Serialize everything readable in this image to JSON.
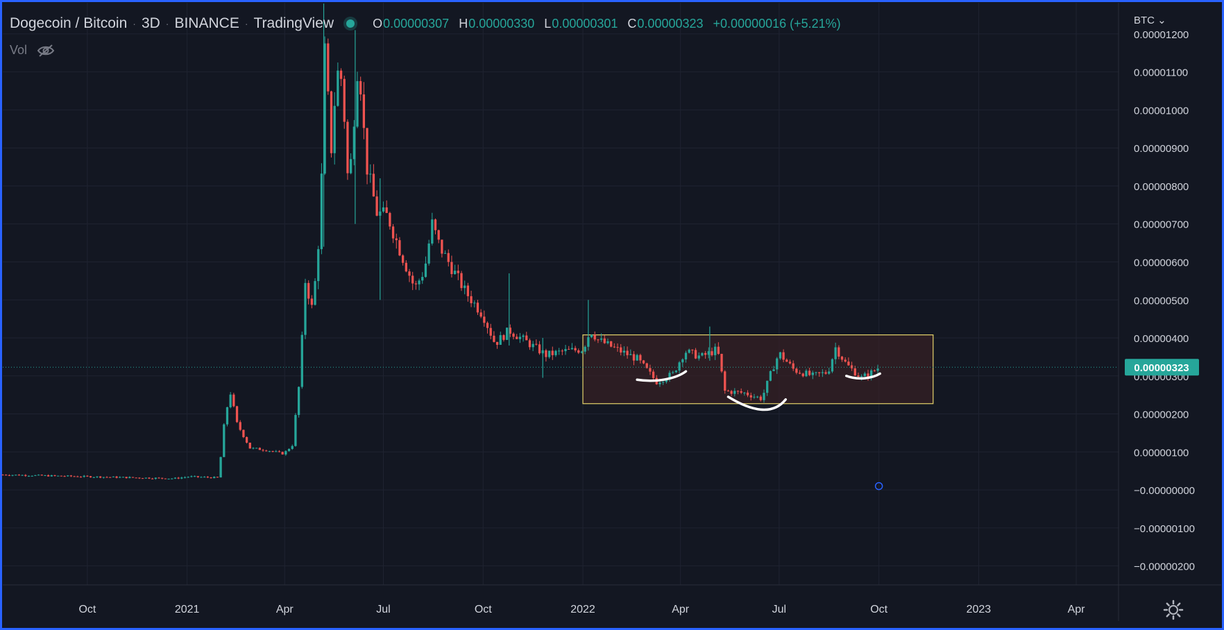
{
  "header": {
    "symbol": "Dogecoin / Bitcoin",
    "interval": "3D",
    "exchange": "BINANCE",
    "source": "TradingView",
    "ohlc": {
      "o_label": "O",
      "o": "0.00000307",
      "h_label": "H",
      "h": "0.00000330",
      "l_label": "L",
      "l": "0.00000301",
      "c_label": "C",
      "c": "0.00000323",
      "change": "+0.00000016 (+5.21%)"
    },
    "volume_label": "Vol"
  },
  "price_scale": {
    "currency": "BTC",
    "last_price_label": "0.00000323"
  },
  "colors": {
    "background": "#131722",
    "grid": "#1f2331",
    "up": "#26a69a",
    "down": "#ef5350",
    "frame": "#2962ff",
    "box_border": "#e6d46b",
    "box_fill": "#3a2025",
    "last_price_tag": "#26a69a"
  },
  "chart_data": {
    "type": "candlestick",
    "title": "",
    "y_axis": {
      "ticks": [
        "0.00001200",
        "0.00001100",
        "0.00001000",
        "0.00000900",
        "0.00000800",
        "0.00000700",
        "0.00000600",
        "0.00000500",
        "0.00000400",
        "0.00000300",
        "0.00000200",
        "0.00000100",
        "−0.00000000",
        "−0.00000100",
        "−0.00000200"
      ],
      "tick_values": [
        1200,
        1100,
        1000,
        900,
        800,
        700,
        600,
        500,
        400,
        300,
        200,
        100,
        0,
        -100,
        -200
      ],
      "unit_note": "values in 1e-8 BTC",
      "range": [
        -235,
        1280
      ]
    },
    "x_axis": {
      "tick_labels": [
        "Oct",
        "2021",
        "Apr",
        "Jul",
        "Oct",
        "2022",
        "Apr",
        "Jul",
        "Oct",
        "2023",
        "Apr"
      ],
      "tick_dates": [
        "2020-10-01",
        "2021-01-01",
        "2021-04-01",
        "2021-07-01",
        "2021-10-01",
        "2022-01-01",
        "2022-04-01",
        "2022-07-01",
        "2022-10-01",
        "2023-01-01",
        "2023-04-01"
      ],
      "range": [
        "2020-07-15",
        "2023-05-10"
      ]
    },
    "price_path": [
      [
        "2020-07-15",
        40
      ],
      [
        "2020-10-01",
        35
      ],
      [
        "2020-12-20",
        30
      ],
      [
        "2021-01-03",
        35
      ],
      [
        "2021-01-30",
        32
      ],
      [
        "2021-02-05",
        195
      ],
      [
        "2021-02-10",
        255
      ],
      [
        "2021-02-16",
        175
      ],
      [
        "2021-02-28",
        110
      ],
      [
        "2021-03-15",
        105
      ],
      [
        "2021-03-31",
        95
      ],
      [
        "2021-04-08",
        118
      ],
      [
        "2021-04-15",
        295
      ],
      [
        "2021-04-20",
        550
      ],
      [
        "2021-04-26",
        480
      ],
      [
        "2021-05-01",
        590
      ],
      [
        "2021-05-05",
        820
      ],
      [
        "2021-05-08",
        1150
      ],
      [
        "2021-05-14",
        900
      ],
      [
        "2021-05-19",
        1100
      ],
      [
        "2021-05-24",
        1080
      ],
      [
        "2021-05-30",
        780
      ],
      [
        "2021-06-08",
        1150
      ],
      [
        "2021-06-15",
        860
      ],
      [
        "2021-06-25",
        730
      ],
      [
        "2021-07-05",
        720
      ],
      [
        "2021-07-15",
        640
      ],
      [
        "2021-07-30",
        530
      ],
      [
        "2021-08-08",
        580
      ],
      [
        "2021-08-15",
        700
      ],
      [
        "2021-08-22",
        640
      ],
      [
        "2021-09-01",
        590
      ],
      [
        "2021-09-15",
        520
      ],
      [
        "2021-10-01",
        460
      ],
      [
        "2021-10-12",
        385
      ],
      [
        "2021-10-25",
        420
      ],
      [
        "2021-11-10",
        390
      ],
      [
        "2021-11-28",
        355
      ],
      [
        "2021-12-15",
        365
      ],
      [
        "2022-01-01",
        370
      ],
      [
        "2022-01-08",
        420
      ],
      [
        "2022-01-15",
        395
      ],
      [
        "2022-02-01",
        370
      ],
      [
        "2022-02-20",
        345
      ],
      [
        "2022-03-10",
        285
      ],
      [
        "2022-03-25",
        305
      ],
      [
        "2022-04-05",
        365
      ],
      [
        "2022-04-20",
        350
      ],
      [
        "2022-05-05",
        370
      ],
      [
        "2022-05-12",
        260
      ],
      [
        "2022-05-30",
        255
      ],
      [
        "2022-06-15",
        240
      ],
      [
        "2022-06-25",
        320
      ],
      [
        "2022-07-01",
        360
      ],
      [
        "2022-07-15",
        315
      ],
      [
        "2022-08-01",
        300
      ],
      [
        "2022-08-15",
        310
      ],
      [
        "2022-08-22",
        375
      ],
      [
        "2022-09-01",
        330
      ],
      [
        "2022-09-15",
        295
      ],
      [
        "2022-09-25",
        310
      ],
      [
        "2022-10-01",
        323
      ]
    ],
    "spikes": [
      {
        "date": "2021-05-07",
        "high": 1280,
        "low": 640
      },
      {
        "date": "2021-06-05",
        "high": 1210,
        "low": 700
      },
      {
        "date": "2021-06-28",
        "high": 820,
        "low": 500
      },
      {
        "date": "2021-11-25",
        "high": 400,
        "low": 295
      },
      {
        "date": "2022-01-06",
        "high": 500,
        "low": 390
      },
      {
        "date": "2022-04-28",
        "high": 430,
        "low": 340
      },
      {
        "date": "2021-10-25",
        "high": 570,
        "low": 380
      }
    ],
    "range_box": {
      "start": "2022-01-01",
      "end": "2022-11-20",
      "top": 408,
      "bottom": 227
    },
    "last_price": 323,
    "hollow_marker": {
      "date": "2022-10-01",
      "value": 10
    }
  }
}
